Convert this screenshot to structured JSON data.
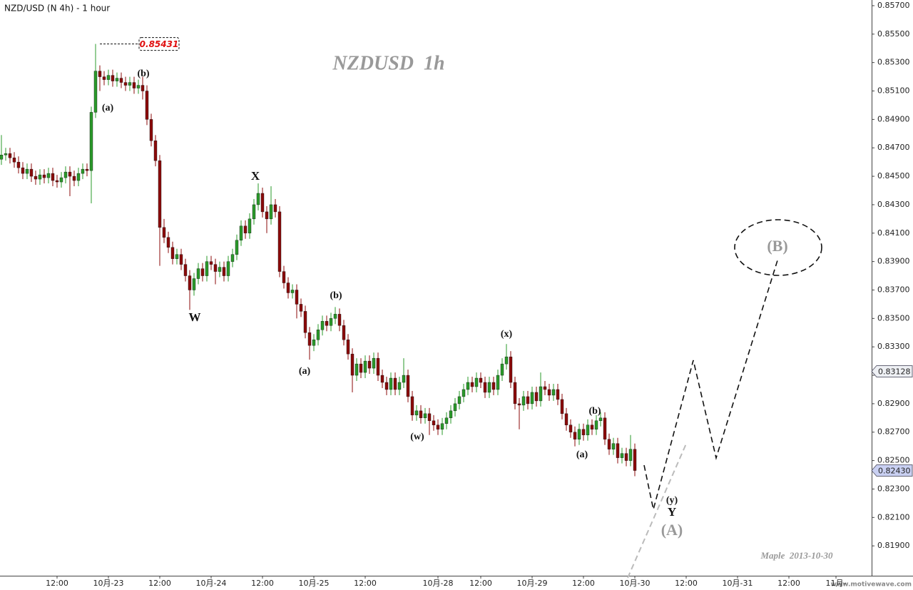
{
  "chart_data": {
    "type": "candlestick",
    "title": "NZD/USD (N 4h) - 1 hour",
    "subtitle": "NZDUSD  1h",
    "open": [
      0.8462,
      0.8465,
      0.8466,
      0.8463,
      0.846,
      0.8456,
      0.8452,
      0.8455,
      0.845,
      0.8448,
      0.8451,
      0.8449,
      0.8452,
      0.8447,
      0.8446,
      0.8449,
      0.8453,
      0.845,
      0.8447,
      0.8452,
      0.8455,
      0.8454,
      0.8495,
      0.8524,
      0.852,
      0.8518,
      0.8521,
      0.8517,
      0.8519,
      0.8516,
      0.8514,
      0.8516,
      0.8512,
      0.8514,
      0.851,
      0.849,
      0.8475,
      0.8461,
      0.8414,
      0.8407,
      0.84,
      0.8392,
      0.8395,
      0.8388,
      0.838,
      0.837,
      0.8378,
      0.8385,
      0.838,
      0.839,
      0.8388,
      0.8383,
      0.8386,
      0.838,
      0.839,
      0.8395,
      0.8405,
      0.8415,
      0.841,
      0.842,
      0.843,
      0.8438,
      0.8425,
      0.842,
      0.843,
      0.8425,
      0.8383,
      0.8375,
      0.8368,
      0.837,
      0.836,
      0.8355,
      0.834,
      0.8331,
      0.8335,
      0.8342,
      0.8348,
      0.8345,
      0.835,
      0.8353,
      0.8345,
      0.8335,
      0.8325,
      0.831,
      0.8318,
      0.8312,
      0.832,
      0.8315,
      0.8322,
      0.831,
      0.8305,
      0.83,
      0.8308,
      0.83,
      0.8305,
      0.831,
      0.8295,
      0.8282,
      0.8285,
      0.828,
      0.8283,
      0.8278,
      0.8275,
      0.8272,
      0.8276,
      0.828,
      0.8285,
      0.829,
      0.8295,
      0.83,
      0.8305,
      0.8302,
      0.8308,
      0.8305,
      0.8298,
      0.8305,
      0.83,
      0.831,
      0.8318,
      0.8323,
      0.8305,
      0.829,
      0.8289,
      0.8295,
      0.829,
      0.8298,
      0.8292,
      0.8302,
      0.83,
      0.8296,
      0.83,
      0.8293,
      0.8283,
      0.8275,
      0.827,
      0.8265,
      0.8272,
      0.8268,
      0.8275,
      0.8272,
      0.8278,
      0.828,
      0.8265,
      0.8258,
      0.8262,
      0.8252,
      0.8255,
      0.825,
      0.8258
    ],
    "high": [
      0.8479,
      0.847,
      0.847,
      0.8467,
      0.8464,
      0.846,
      0.8459,
      0.8459,
      0.8454,
      0.8455,
      0.8455,
      0.8456,
      0.8456,
      0.8451,
      0.8453,
      0.8457,
      0.8457,
      0.8454,
      0.8456,
      0.8459,
      0.8459,
      0.8499,
      0.85431,
      0.8528,
      0.8524,
      0.8525,
      0.8525,
      0.8523,
      0.8523,
      0.852,
      0.852,
      0.852,
      0.8518,
      0.852,
      0.8514,
      0.8494,
      0.8479,
      0.8465,
      0.842,
      0.8411,
      0.8404,
      0.8399,
      0.8399,
      0.8392,
      0.8384,
      0.8382,
      0.8389,
      0.8389,
      0.8394,
      0.8394,
      0.8392,
      0.839,
      0.839,
      0.8394,
      0.8399,
      0.8409,
      0.8419,
      0.8419,
      0.8424,
      0.8434,
      0.8445,
      0.8442,
      0.8429,
      0.8443,
      0.8434,
      0.8429,
      0.8387,
      0.8379,
      0.8374,
      0.8374,
      0.8364,
      0.8359,
      0.8344,
      0.8339,
      0.8346,
      0.8352,
      0.8352,
      0.8354,
      0.8358,
      0.8357,
      0.8349,
      0.8339,
      0.8329,
      0.8322,
      0.8322,
      0.8324,
      0.8324,
      0.8326,
      0.8326,
      0.8314,
      0.8309,
      0.8312,
      0.8312,
      0.8309,
      0.8322,
      0.8314,
      0.8299,
      0.8289,
      0.8289,
      0.8287,
      0.8287,
      0.8282,
      0.8279,
      0.828,
      0.8284,
      0.8289,
      0.8294,
      0.8299,
      0.8304,
      0.8309,
      0.8309,
      0.8312,
      0.8312,
      0.8309,
      0.8309,
      0.8309,
      0.8314,
      0.8322,
      0.8332,
      0.8327,
      0.8309,
      0.8294,
      0.8299,
      0.8299,
      0.8302,
      0.8302,
      0.8312,
      0.8306,
      0.8304,
      0.8304,
      0.8304,
      0.8297,
      0.8287,
      0.8279,
      0.8274,
      0.8276,
      0.8276,
      0.8279,
      0.8279,
      0.8282,
      0.8284,
      0.8284,
      0.8269,
      0.8266,
      0.8266,
      0.8259,
      0.8259,
      0.8268,
      0.8262
    ],
    "low": [
      0.8458,
      0.8461,
      0.8459,
      0.8456,
      0.8452,
      0.8448,
      0.8448,
      0.8446,
      0.8444,
      0.8444,
      0.8445,
      0.8445,
      0.8443,
      0.8442,
      0.8442,
      0.8445,
      0.8436,
      0.8443,
      0.8443,
      0.8448,
      0.845,
      0.8431,
      0.8491,
      0.851,
      0.8514,
      0.8514,
      0.8513,
      0.8513,
      0.8512,
      0.851,
      0.851,
      0.8508,
      0.8508,
      0.8504,
      0.8486,
      0.8471,
      0.8457,
      0.8387,
      0.8403,
      0.8396,
      0.8388,
      0.8388,
      0.8384,
      0.8376,
      0.8356,
      0.8366,
      0.8374,
      0.8376,
      0.8376,
      0.8384,
      0.8374,
      0.8379,
      0.8376,
      0.8376,
      0.8386,
      0.8391,
      0.8401,
      0.8406,
      0.8406,
      0.8416,
      0.8426,
      0.8421,
      0.841,
      0.8416,
      0.8421,
      0.8379,
      0.8371,
      0.8364,
      0.8364,
      0.835,
      0.8351,
      0.8336,
      0.8321,
      0.8327,
      0.8331,
      0.8338,
      0.8341,
      0.8341,
      0.8346,
      0.8341,
      0.8331,
      0.8321,
      0.8298,
      0.8306,
      0.8308,
      0.8308,
      0.8311,
      0.8311,
      0.8306,
      0.8301,
      0.8296,
      0.8296,
      0.8296,
      0.8296,
      0.8301,
      0.8291,
      0.8278,
      0.8278,
      0.8276,
      0.8276,
      0.8268,
      0.8271,
      0.8268,
      0.8268,
      0.8272,
      0.8276,
      0.8281,
      0.8286,
      0.8291,
      0.8296,
      0.8298,
      0.8298,
      0.8301,
      0.8294,
      0.8294,
      0.8296,
      0.8296,
      0.8306,
      0.8314,
      0.8301,
      0.8286,
      0.8272,
      0.8285,
      0.8286,
      0.8286,
      0.8288,
      0.8288,
      0.8296,
      0.8292,
      0.8292,
      0.8289,
      0.8279,
      0.8271,
      0.8266,
      0.826,
      0.8261,
      0.8264,
      0.8264,
      0.8268,
      0.8268,
      0.8274,
      0.8261,
      0.8254,
      0.8254,
      0.8248,
      0.8248,
      0.8246,
      0.8246,
      0.8239
    ],
    "close": [
      0.8465,
      0.8466,
      0.8463,
      0.846,
      0.8456,
      0.8452,
      0.8455,
      0.845,
      0.8448,
      0.8451,
      0.8449,
      0.8452,
      0.8447,
      0.8446,
      0.8449,
      0.8453,
      0.845,
      0.8447,
      0.8452,
      0.8455,
      0.8454,
      0.8495,
      0.8524,
      0.852,
      0.8518,
      0.8521,
      0.8517,
      0.8519,
      0.8516,
      0.8514,
      0.8516,
      0.8512,
      0.8514,
      0.851,
      0.849,
      0.8475,
      0.8461,
      0.8414,
      0.8407,
      0.84,
      0.8392,
      0.8395,
      0.8388,
      0.838,
      0.837,
      0.8378,
      0.8385,
      0.838,
      0.839,
      0.8388,
      0.8383,
      0.8386,
      0.838,
      0.839,
      0.8395,
      0.8405,
      0.8415,
      0.841,
      0.842,
      0.843,
      0.8438,
      0.8425,
      0.842,
      0.843,
      0.8425,
      0.8383,
      0.8375,
      0.8368,
      0.837,
      0.836,
      0.8355,
      0.834,
      0.8331,
      0.8335,
      0.8342,
      0.8348,
      0.8345,
      0.835,
      0.8353,
      0.8345,
      0.8335,
      0.8325,
      0.831,
      0.8318,
      0.8312,
      0.832,
      0.8315,
      0.8322,
      0.831,
      0.8305,
      0.83,
      0.8308,
      0.83,
      0.8305,
      0.831,
      0.8295,
      0.8282,
      0.8285,
      0.828,
      0.8283,
      0.8278,
      0.8275,
      0.8272,
      0.8276,
      0.828,
      0.8285,
      0.829,
      0.8295,
      0.83,
      0.8305,
      0.8302,
      0.8308,
      0.8305,
      0.8298,
      0.8305,
      0.83,
      0.831,
      0.8318,
      0.8323,
      0.8305,
      0.829,
      0.8289,
      0.8295,
      0.829,
      0.8298,
      0.8292,
      0.8302,
      0.83,
      0.8296,
      0.83,
      0.8293,
      0.8283,
      0.8275,
      0.827,
      0.8265,
      0.8272,
      0.8268,
      0.8275,
      0.8272,
      0.8278,
      0.828,
      0.8265,
      0.8258,
      0.8262,
      0.8252,
      0.8255,
      0.825,
      0.8258,
      0.8243
    ],
    "up_color": "#2a9a2a",
    "down_color": "#8b0a0a",
    "ylim": [
      0.8169,
      0.8574
    ],
    "yticks": [
      {
        "value": 0.857,
        "label": "0.85700"
      },
      {
        "value": 0.855,
        "label": "0.85500"
      },
      {
        "value": 0.853,
        "label": "0.85300"
      },
      {
        "value": 0.851,
        "label": "0.85100"
      },
      {
        "value": 0.849,
        "label": "0.84900"
      },
      {
        "value": 0.847,
        "label": "0.84700"
      },
      {
        "value": 0.845,
        "label": "0.84500"
      },
      {
        "value": 0.843,
        "label": "0.84300"
      },
      {
        "value": 0.841,
        "label": "0.84100"
      },
      {
        "value": 0.839,
        "label": "0.83900"
      },
      {
        "value": 0.837,
        "label": "0.83700"
      },
      {
        "value": 0.835,
        "label": "0.83500"
      },
      {
        "value": 0.833,
        "label": "0.83300"
      },
      {
        "value": 0.831,
        "label": "0.83100"
      },
      {
        "value": 0.829,
        "label": "0.82900"
      },
      {
        "value": 0.827,
        "label": "0.82700"
      },
      {
        "value": 0.825,
        "label": "0.82500"
      },
      {
        "value": 0.823,
        "label": "0.82300"
      },
      {
        "value": 0.821,
        "label": "0.82100"
      },
      {
        "value": 0.819,
        "label": "0.81900"
      }
    ],
    "xlim": [
      -0.33,
      203.33
    ],
    "xticks": [
      {
        "value": 13,
        "label": "12:00"
      },
      {
        "value": 25,
        "label": "10月-23"
      },
      {
        "value": 37,
        "label": "12:00"
      },
      {
        "value": 49,
        "label": "10月-24"
      },
      {
        "value": 61,
        "label": "12:00"
      },
      {
        "value": 73,
        "label": "10月-25"
      },
      {
        "value": 85,
        "label": "12:00"
      },
      {
        "value": 102,
        "label": "10月-28"
      },
      {
        "value": 112,
        "label": "12:00"
      },
      {
        "value": 124,
        "label": "10月-29"
      },
      {
        "value": 136,
        "label": "12:00"
      },
      {
        "value": 148,
        "label": "10月-30"
      },
      {
        "value": 160,
        "label": "12:00"
      },
      {
        "value": 172,
        "label": "10月-31"
      },
      {
        "value": 184,
        "label": "12:00"
      },
      {
        "value": 195,
        "label": "11月-"
      }
    ],
    "high_marker": {
      "value": 0.85431,
      "label": "0.85431"
    },
    "price_markers": [
      {
        "value": 0.83128,
        "label": "0.83128"
      },
      {
        "value": 0.8243,
        "label": "0.82430"
      }
    ],
    "annotations": [
      "(a)",
      "(b)",
      "W",
      "X",
      "(b)",
      "(a)",
      "(w)",
      "(x)",
      "(b)",
      "(a)",
      "(y)",
      "Y",
      "(A)",
      "(B)",
      "Maple  2013-10-30"
    ],
    "watermark": "www.motivewave.com"
  }
}
